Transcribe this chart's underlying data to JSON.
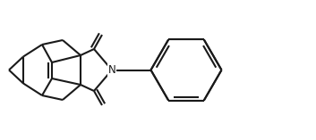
{
  "bg_color": "#ffffff",
  "line_color": "#1a1a1a",
  "line_width": 1.5,
  "figsize": [
    3.53,
    1.57
  ],
  "dpi": 100,
  "N_fontsize": 8.5
}
